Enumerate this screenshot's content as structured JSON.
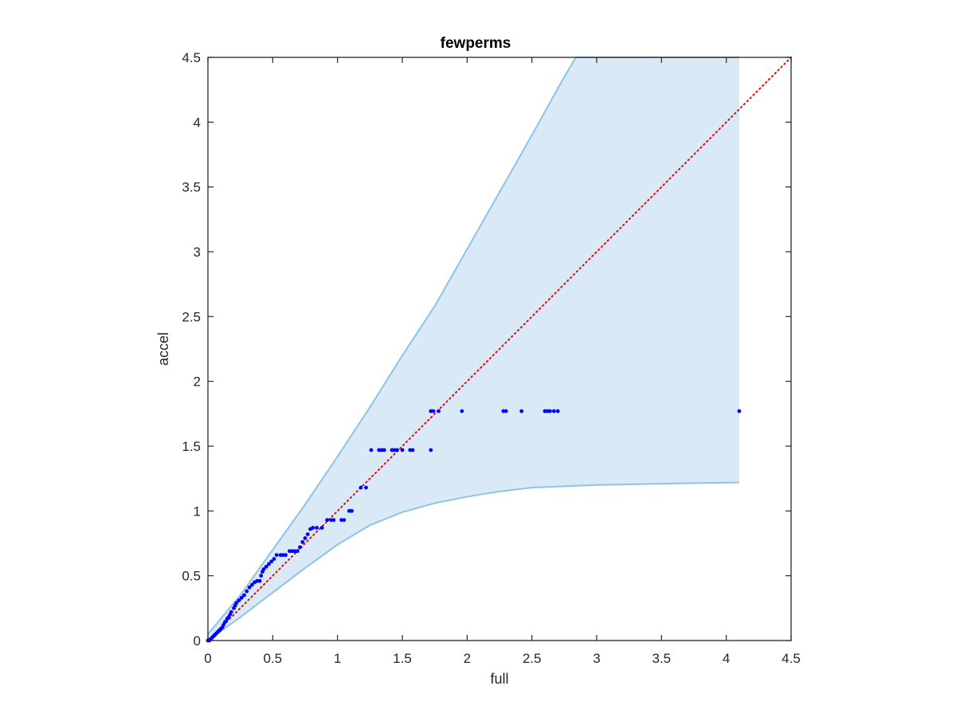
{
  "chart_data": {
    "type": "scatter",
    "title": "fewperms",
    "xlabel": "full",
    "ylabel": "accel",
    "xlim": [
      0,
      4.5
    ],
    "ylim": [
      0,
      4.5
    ],
    "xticks": [
      0,
      0.5,
      1,
      1.5,
      2,
      2.5,
      3,
      3.5,
      4,
      4.5
    ],
    "yticks": [
      0,
      0.5,
      1,
      1.5,
      2,
      2.5,
      3,
      3.5,
      4,
      4.5
    ],
    "xtick_labels": [
      "0",
      "0.5",
      "1",
      "1.5",
      "2",
      "2.5",
      "3",
      "3.5",
      "4",
      "4.5"
    ],
    "ytick_labels": [
      "0",
      "0.5",
      "1",
      "1.5",
      "2",
      "2.5",
      "3",
      "3.5",
      "4",
      "4.5"
    ],
    "grid": false,
    "box": true,
    "confidence_band": {
      "color": "#d9e9f5",
      "edge_color": "#8ec3e6",
      "upper": [
        {
          "x": 0,
          "y": 0.05
        },
        {
          "x": 0.25,
          "y": 0.35
        },
        {
          "x": 0.5,
          "y": 0.7
        },
        {
          "x": 0.75,
          "y": 1.05
        },
        {
          "x": 1.0,
          "y": 1.42
        },
        {
          "x": 1.25,
          "y": 1.8
        },
        {
          "x": 1.5,
          "y": 2.2
        },
        {
          "x": 1.75,
          "y": 2.58
        },
        {
          "x": 2.0,
          "y": 3.02
        },
        {
          "x": 2.25,
          "y": 3.46
        },
        {
          "x": 2.5,
          "y": 3.9
        },
        {
          "x": 2.75,
          "y": 4.35
        },
        {
          "x": 2.84,
          "y": 4.5
        },
        {
          "x": 4.1,
          "y": 4.5
        }
      ],
      "lower": [
        {
          "x": 0,
          "y": 0
        },
        {
          "x": 0.25,
          "y": 0.18
        },
        {
          "x": 0.5,
          "y": 0.37
        },
        {
          "x": 0.75,
          "y": 0.56
        },
        {
          "x": 1.0,
          "y": 0.74
        },
        {
          "x": 1.25,
          "y": 0.89
        },
        {
          "x": 1.5,
          "y": 0.99
        },
        {
          "x": 1.75,
          "y": 1.06
        },
        {
          "x": 2.0,
          "y": 1.11
        },
        {
          "x": 2.25,
          "y": 1.15
        },
        {
          "x": 2.5,
          "y": 1.18
        },
        {
          "x": 3.0,
          "y": 1.2
        },
        {
          "x": 3.5,
          "y": 1.21
        },
        {
          "x": 4.1,
          "y": 1.22
        }
      ]
    },
    "reference_line": {
      "x": [
        0,
        4.5
      ],
      "y": [
        0,
        4.5
      ],
      "color": "#ff0000",
      "style": "dotted"
    },
    "series": [
      {
        "color": "#0000ff",
        "points": [
          {
            "x": 0.0,
            "y": 0.0
          },
          {
            "x": 0.01,
            "y": 0.0
          },
          {
            "x": 0.02,
            "y": 0.01
          },
          {
            "x": 0.03,
            "y": 0.02
          },
          {
            "x": 0.04,
            "y": 0.03
          },
          {
            "x": 0.05,
            "y": 0.04
          },
          {
            "x": 0.06,
            "y": 0.05
          },
          {
            "x": 0.07,
            "y": 0.06
          },
          {
            "x": 0.08,
            "y": 0.07
          },
          {
            "x": 0.09,
            "y": 0.08
          },
          {
            "x": 0.1,
            "y": 0.09
          },
          {
            "x": 0.11,
            "y": 0.1
          },
          {
            "x": 0.12,
            "y": 0.12
          },
          {
            "x": 0.13,
            "y": 0.14
          },
          {
            "x": 0.14,
            "y": 0.15
          },
          {
            "x": 0.15,
            "y": 0.17
          },
          {
            "x": 0.16,
            "y": 0.18
          },
          {
            "x": 0.17,
            "y": 0.2
          },
          {
            "x": 0.18,
            "y": 0.22
          },
          {
            "x": 0.2,
            "y": 0.25
          },
          {
            "x": 0.21,
            "y": 0.27
          },
          {
            "x": 0.22,
            "y": 0.29
          },
          {
            "x": 0.24,
            "y": 0.31
          },
          {
            "x": 0.26,
            "y": 0.33
          },
          {
            "x": 0.28,
            "y": 0.35
          },
          {
            "x": 0.3,
            "y": 0.38
          },
          {
            "x": 0.32,
            "y": 0.41
          },
          {
            "x": 0.34,
            "y": 0.43
          },
          {
            "x": 0.36,
            "y": 0.45
          },
          {
            "x": 0.38,
            "y": 0.46
          },
          {
            "x": 0.4,
            "y": 0.46
          },
          {
            "x": 0.41,
            "y": 0.5
          },
          {
            "x": 0.42,
            "y": 0.53
          },
          {
            "x": 0.43,
            "y": 0.55
          },
          {
            "x": 0.45,
            "y": 0.57
          },
          {
            "x": 0.47,
            "y": 0.59
          },
          {
            "x": 0.49,
            "y": 0.61
          },
          {
            "x": 0.51,
            "y": 0.63
          },
          {
            "x": 0.53,
            "y": 0.66
          },
          {
            "x": 0.56,
            "y": 0.66
          },
          {
            "x": 0.58,
            "y": 0.66
          },
          {
            "x": 0.6,
            "y": 0.66
          },
          {
            "x": 0.63,
            "y": 0.69
          },
          {
            "x": 0.65,
            "y": 0.69
          },
          {
            "x": 0.67,
            "y": 0.69
          },
          {
            "x": 0.69,
            "y": 0.69
          },
          {
            "x": 0.71,
            "y": 0.72
          },
          {
            "x": 0.73,
            "y": 0.76
          },
          {
            "x": 0.75,
            "y": 0.79
          },
          {
            "x": 0.77,
            "y": 0.82
          },
          {
            "x": 0.79,
            "y": 0.86
          },
          {
            "x": 0.81,
            "y": 0.87
          },
          {
            "x": 0.84,
            "y": 0.87
          },
          {
            "x": 0.88,
            "y": 0.87
          },
          {
            "x": 0.92,
            "y": 0.93
          },
          {
            "x": 0.95,
            "y": 0.93
          },
          {
            "x": 0.97,
            "y": 0.93
          },
          {
            "x": 1.03,
            "y": 0.93
          },
          {
            "x": 1.05,
            "y": 0.93
          },
          {
            "x": 1.09,
            "y": 1.0
          },
          {
            "x": 1.11,
            "y": 1.0
          },
          {
            "x": 1.18,
            "y": 1.18
          },
          {
            "x": 1.22,
            "y": 1.18
          },
          {
            "x": 1.26,
            "y": 1.47
          },
          {
            "x": 1.32,
            "y": 1.47
          },
          {
            "x": 1.34,
            "y": 1.47
          },
          {
            "x": 1.36,
            "y": 1.47
          },
          {
            "x": 1.42,
            "y": 1.47
          },
          {
            "x": 1.44,
            "y": 1.47
          },
          {
            "x": 1.46,
            "y": 1.47
          },
          {
            "x": 1.5,
            "y": 1.47
          },
          {
            "x": 1.56,
            "y": 1.47
          },
          {
            "x": 1.58,
            "y": 1.47
          },
          {
            "x": 1.72,
            "y": 1.47
          },
          {
            "x": 1.72,
            "y": 1.77
          },
          {
            "x": 1.74,
            "y": 1.77
          },
          {
            "x": 1.78,
            "y": 1.77
          },
          {
            "x": 1.96,
            "y": 1.77
          },
          {
            "x": 2.28,
            "y": 1.77
          },
          {
            "x": 2.3,
            "y": 1.77
          },
          {
            "x": 2.42,
            "y": 1.77
          },
          {
            "x": 2.6,
            "y": 1.77
          },
          {
            "x": 2.62,
            "y": 1.77
          },
          {
            "x": 2.64,
            "y": 1.77
          },
          {
            "x": 2.67,
            "y": 1.77
          },
          {
            "x": 2.7,
            "y": 1.77
          },
          {
            "x": 4.1,
            "y": 1.77
          }
        ]
      }
    ]
  }
}
